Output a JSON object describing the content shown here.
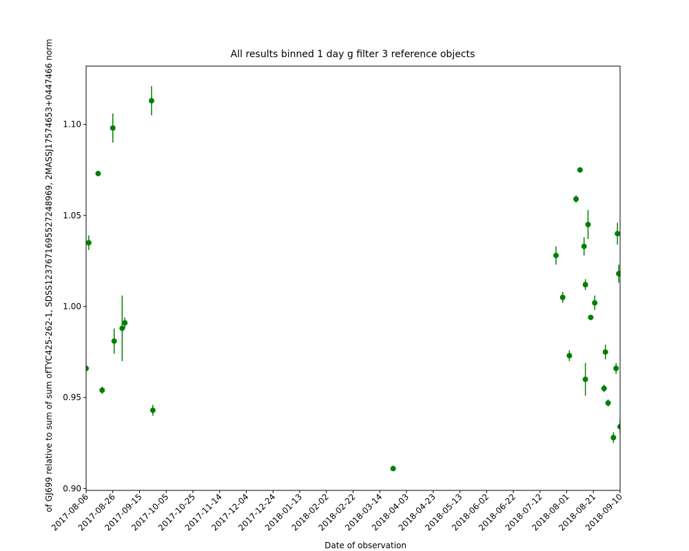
{
  "chart_data": {
    "type": "errorbar",
    "title": "All results binned 1 day g filter 3 reference objects",
    "xlabel": "Date of observation",
    "ylabel": "of GJ699 relative to sum of sum ofTYC425-262-1, SDSS1237671695527248969, 2MASSJ17574653+0447466 norm",
    "color": "#008000",
    "x": [
      "2017-08-06",
      "2017-08-08",
      "2017-08-15",
      "2017-08-18",
      "2017-08-26",
      "2017-08-27",
      "2017-09-02",
      "2017-09-04",
      "2017-09-24",
      "2017-09-25",
      "2018-03-24",
      "2018-07-24",
      "2018-07-29",
      "2018-08-03",
      "2018-08-08",
      "2018-08-11",
      "2018-08-14",
      "2018-08-15",
      "2018-08-15",
      "2018-08-17",
      "2018-08-19",
      "2018-08-22",
      "2018-08-29",
      "2018-08-30",
      "2018-09-01",
      "2018-09-05",
      "2018-09-07",
      "2018-09-08",
      "2018-09-09",
      "2018-09-10"
    ],
    "values": [
      0.966,
      1.035,
      1.073,
      0.954,
      1.098,
      0.981,
      0.988,
      0.991,
      1.113,
      0.943,
      0.911,
      1.028,
      1.005,
      0.973,
      1.059,
      1.075,
      1.033,
      1.012,
      0.96,
      1.045,
      0.994,
      1.002,
      0.955,
      0.975,
      0.947,
      0.928,
      0.966,
      1.04,
      1.018,
      0.934
    ],
    "errors": [
      0.001,
      0.004,
      0.001,
      0.002,
      0.008,
      0.007,
      0.018,
      0.003,
      0.008,
      0.003,
      0.001,
      0.005,
      0.003,
      0.003,
      0.002,
      0.001,
      0.005,
      0.003,
      0.009,
      0.008,
      0.001,
      0.004,
      0.002,
      0.004,
      0.002,
      0.003,
      0.003,
      0.006,
      0.005,
      0.004
    ],
    "xlim": [
      "2017-08-06",
      "2018-09-10"
    ],
    "xticks": [
      "2017-08-06",
      "2017-08-26",
      "2017-09-15",
      "2017-10-05",
      "2017-10-25",
      "2017-11-14",
      "2017-12-04",
      "2017-12-24",
      "2018-01-13",
      "2018-02-02",
      "2018-02-22",
      "2018-03-14",
      "2018-04-03",
      "2018-04-23",
      "2018-05-13",
      "2018-06-02",
      "2018-06-22",
      "2018-07-12",
      "2018-08-01",
      "2018-08-21",
      "2018-09-10"
    ],
    "ylim": [
      0.899,
      1.132
    ],
    "yticks": [
      {
        "value": 0.9,
        "label": "0.90"
      },
      0.95,
      {
        "value": 1.0,
        "label": "1.00"
      },
      1.05,
      {
        "value": 1.1,
        "label": "1.10"
      }
    ]
  }
}
